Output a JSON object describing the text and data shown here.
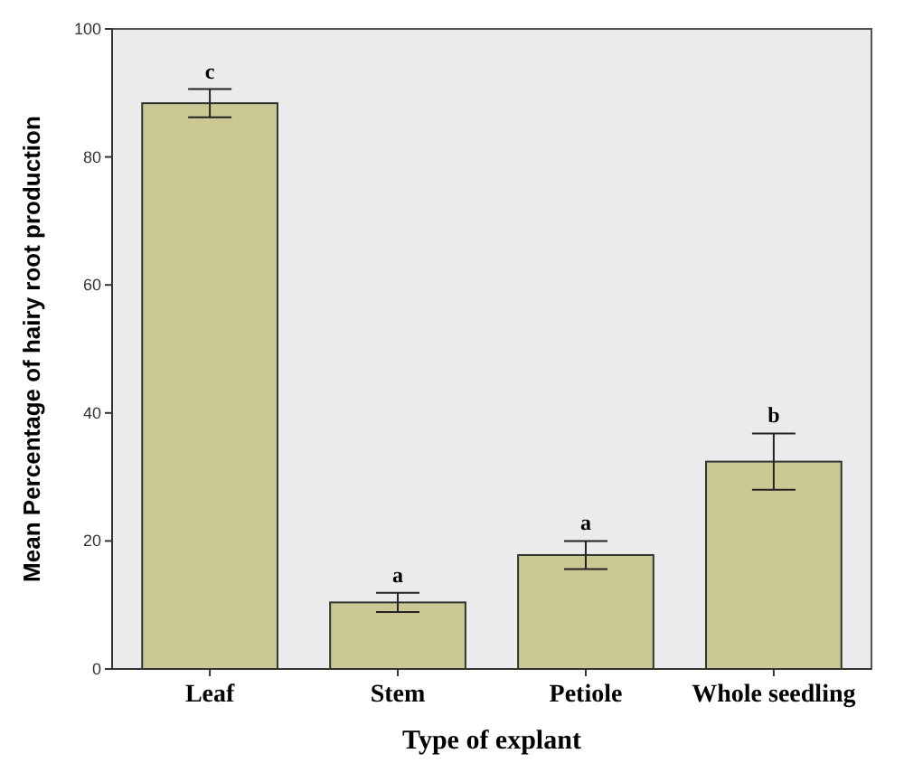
{
  "chart_data": {
    "type": "bar",
    "xlabel": "Type of explant",
    "ylabel": "Mean Percentage of hairy root production",
    "categories": [
      "Leaf",
      "Stem",
      "Petiole",
      "Whole seedling"
    ],
    "values": [
      88.4,
      10.4,
      17.8,
      32.4
    ],
    "errors": [
      2.2,
      1.5,
      2.2,
      4.4
    ],
    "color": "#cbc893",
    "ylim": [
      0,
      100
    ],
    "yticks": [
      0,
      20,
      40,
      60,
      80,
      100
    ],
    "grid": false,
    "annotations": [
      {
        "text": "c",
        "x": "Leaf",
        "y": 90.6
      },
      {
        "text": "a",
        "x": "Stem",
        "y": 11.9
      },
      {
        "text": "a",
        "x": "Petiole",
        "y": 20
      },
      {
        "text": "b",
        "x": "Whole seedling",
        "y": 36.8
      }
    ]
  }
}
